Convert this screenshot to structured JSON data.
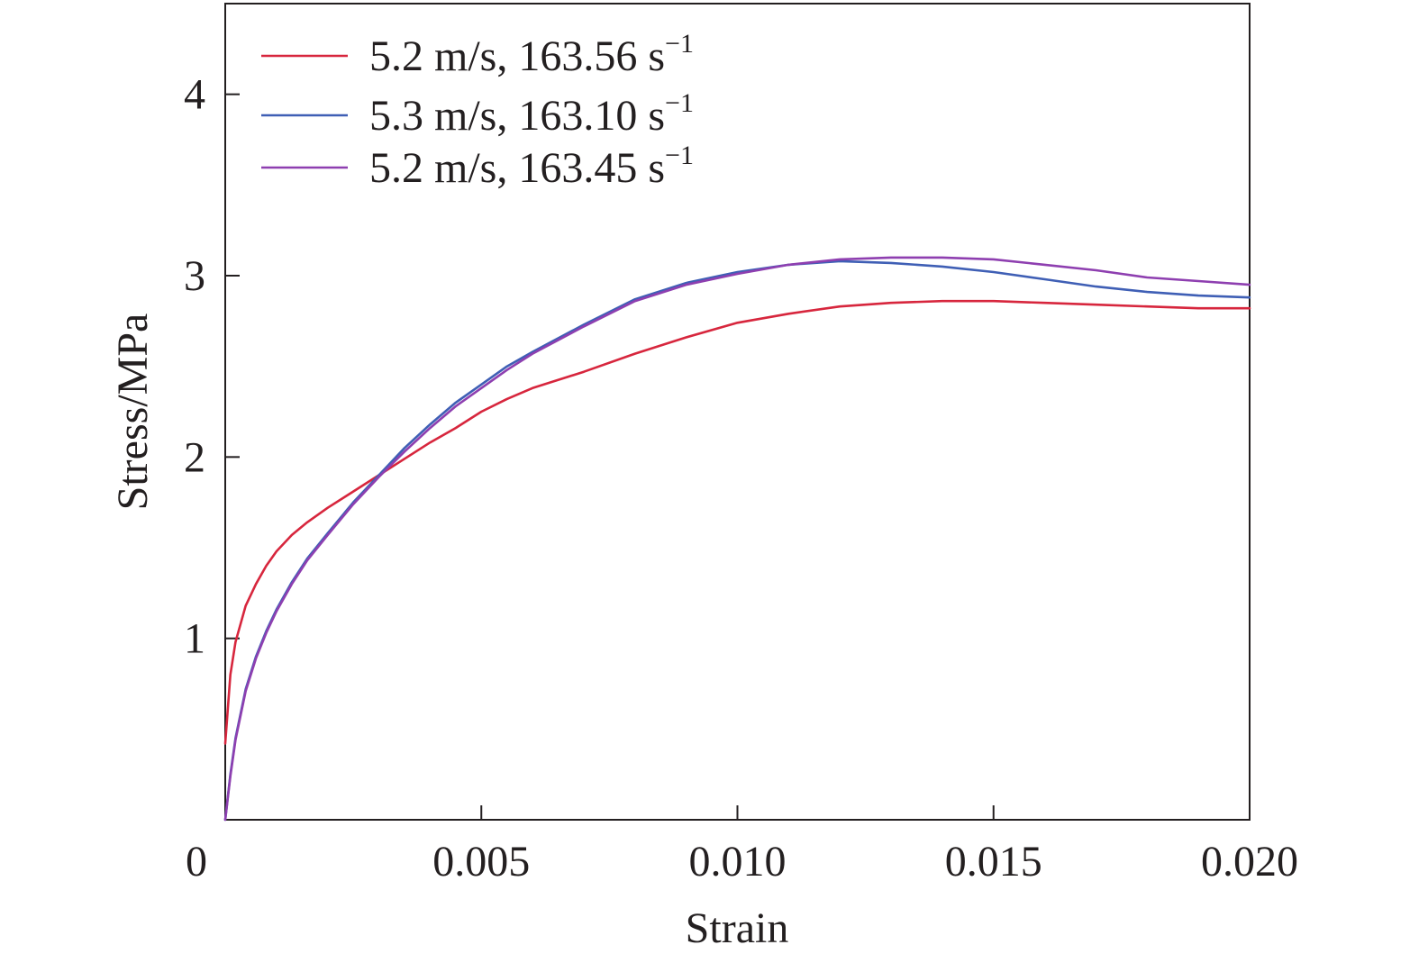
{
  "chart_data": {
    "type": "line",
    "title": "",
    "xlabel": "Strain",
    "ylabel": "Stress/MPa",
    "xlim": [
      0,
      0.02
    ],
    "ylim": [
      0,
      4.5
    ],
    "xticks": [
      {
        "value": 0,
        "label": "0"
      },
      {
        "value": 0.005,
        "label": "0.005"
      },
      {
        "value": 0.01,
        "label": "0.010"
      },
      {
        "value": 0.015,
        "label": "0.015"
      },
      {
        "value": 0.02,
        "label": "0.020"
      }
    ],
    "yticks": [
      {
        "value": 1,
        "label": "1"
      },
      {
        "value": 2,
        "label": "2"
      },
      {
        "value": 3,
        "label": "3"
      },
      {
        "value": 4,
        "label": "4"
      }
    ],
    "grid": false,
    "legend_position": "top-left",
    "series": [
      {
        "name": "5.2 m/s, 163.56 s",
        "name_superscript": "−1",
        "color": "#d7263d",
        "x": [
          0,
          0.0001,
          0.0002,
          0.0004,
          0.0006,
          0.0008,
          0.001,
          0.0013,
          0.0016,
          0.002,
          0.0025,
          0.003,
          0.0035,
          0.004,
          0.0045,
          0.005,
          0.0055,
          0.006,
          0.007,
          0.008,
          0.009,
          0.01,
          0.011,
          0.012,
          0.013,
          0.014,
          0.015,
          0.016,
          0.017,
          0.018,
          0.019,
          0.02
        ],
        "y": [
          0.42,
          0.8,
          0.98,
          1.18,
          1.3,
          1.4,
          1.48,
          1.57,
          1.64,
          1.72,
          1.81,
          1.9,
          1.99,
          2.08,
          2.16,
          2.25,
          2.32,
          2.38,
          2.47,
          2.57,
          2.66,
          2.74,
          2.79,
          2.83,
          2.85,
          2.86,
          2.86,
          2.85,
          2.84,
          2.83,
          2.82,
          2.82
        ]
      },
      {
        "name": "5.3 m/s, 163.10 s",
        "name_superscript": "−1",
        "color": "#3f5fb5",
        "x": [
          0,
          0.0001,
          0.0002,
          0.0004,
          0.0006,
          0.0008,
          0.001,
          0.0013,
          0.0016,
          0.002,
          0.0025,
          0.003,
          0.0035,
          0.004,
          0.0045,
          0.005,
          0.0055,
          0.006,
          0.007,
          0.008,
          0.009,
          0.01,
          0.011,
          0.012,
          0.013,
          0.014,
          0.015,
          0.016,
          0.017,
          0.018,
          0.019,
          0.02
        ],
        "y": [
          0.0,
          0.25,
          0.45,
          0.72,
          0.9,
          1.04,
          1.16,
          1.31,
          1.44,
          1.58,
          1.75,
          1.9,
          2.05,
          2.18,
          2.3,
          2.4,
          2.5,
          2.58,
          2.73,
          2.87,
          2.96,
          3.02,
          3.06,
          3.08,
          3.07,
          3.05,
          3.02,
          2.98,
          2.94,
          2.91,
          2.89,
          2.88
        ]
      },
      {
        "name": "5.2 m/s, 163.45 s",
        "name_superscript": "−1",
        "color": "#8e3fb0",
        "x": [
          0,
          0.0001,
          0.0002,
          0.0004,
          0.0006,
          0.0008,
          0.001,
          0.0013,
          0.0016,
          0.002,
          0.0025,
          0.003,
          0.0035,
          0.004,
          0.0045,
          0.005,
          0.0055,
          0.006,
          0.007,
          0.008,
          0.009,
          0.01,
          0.011,
          0.012,
          0.013,
          0.014,
          0.015,
          0.016,
          0.017,
          0.018,
          0.019,
          0.02
        ],
        "y": [
          0.0,
          0.24,
          0.44,
          0.71,
          0.89,
          1.03,
          1.15,
          1.3,
          1.43,
          1.57,
          1.74,
          1.89,
          2.03,
          2.16,
          2.28,
          2.38,
          2.48,
          2.57,
          2.72,
          2.86,
          2.95,
          3.01,
          3.06,
          3.09,
          3.1,
          3.1,
          3.09,
          3.06,
          3.03,
          2.99,
          2.97,
          2.95
        ]
      }
    ]
  }
}
